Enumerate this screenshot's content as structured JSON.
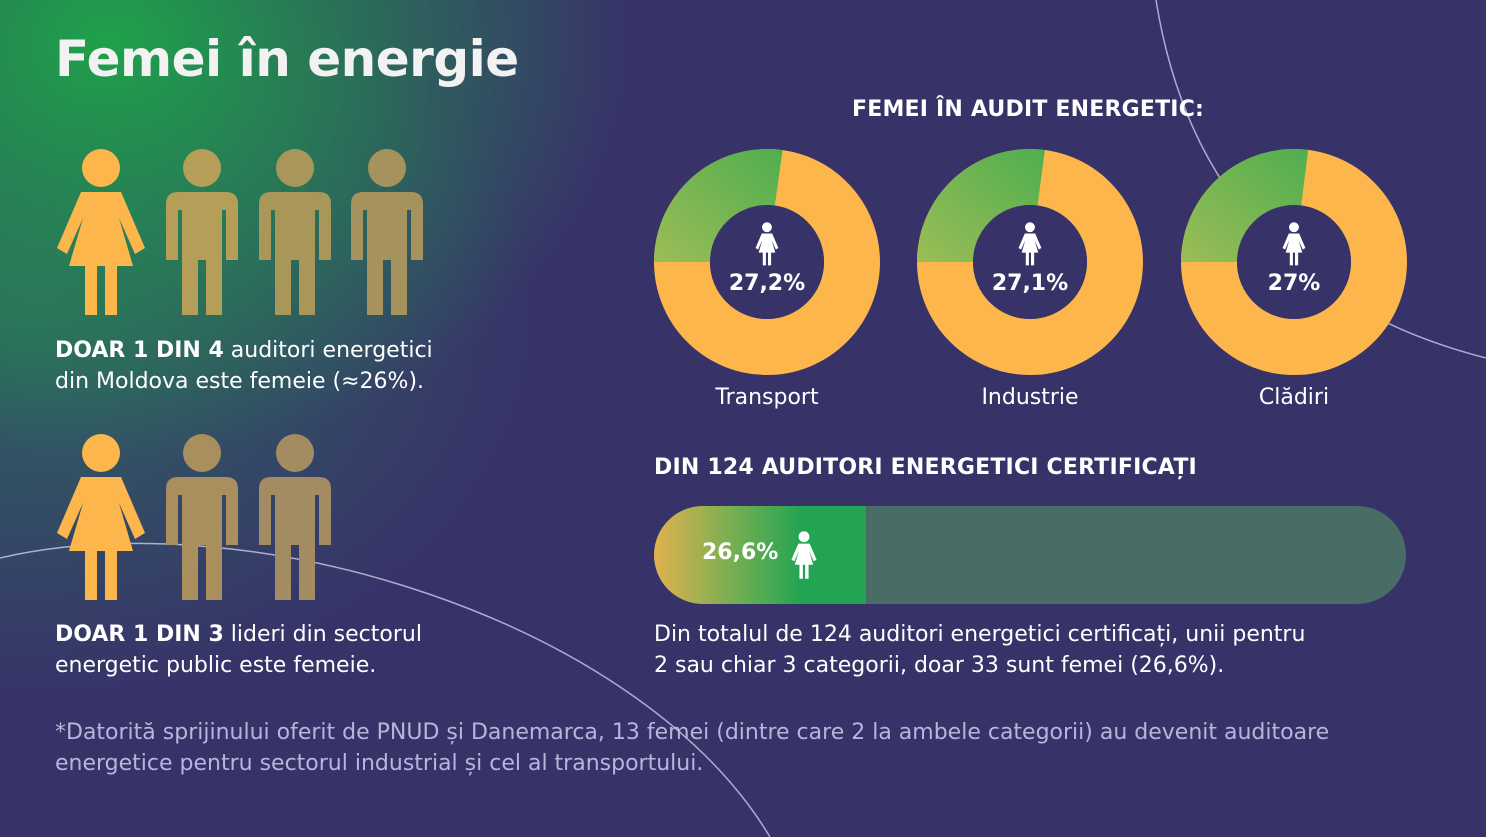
{
  "title": "Femei în energie",
  "colors": {
    "background": "#373369",
    "green_glow": "#1fa14a",
    "women": "#fcb64c",
    "donut_green": "#6cb552",
    "bar_track": "#4a6c66",
    "person_female": "#fcb64c",
    "person_male_1": "#b59e58",
    "person_male_2": "#a5925c",
    "person_male_3": "#a48c62"
  },
  "left": {
    "stat1": {
      "icons": [
        "female-person-icon",
        "male-person-icon",
        "male-person-icon",
        "male-person-icon"
      ],
      "bold": "DOAR 1 DIN 4",
      "line1_rest": " auditori energetici",
      "line2": "din Moldova este femeie (≈26%)."
    },
    "stat2": {
      "icons": [
        "female-person-icon",
        "male-person-icon",
        "male-person-icon"
      ],
      "bold": "DOAR 1 DIN 3",
      "line1_rest": " lideri din sectorul",
      "line2": "energetic public este femeie."
    }
  },
  "audit": {
    "title": "FEMEI ÎN AUDIT ENERGETIC:",
    "icon": "female-person-icon"
  },
  "certified": {
    "title": "DIN 124 AUDITORI ENERGETICI CERTIFICAȚI",
    "line1": "Din totalul de 124 auditori energetici certificați, unii pentru",
    "line2": "2 sau chiar 3 categorii, doar 33 sunt femei (26,6%).",
    "icon": "female-person-icon"
  },
  "footnote": {
    "line1": "*Datorită sprijinului oferit de PNUD și Danemarca, 13 femei (dintre care 2 la ambele categorii) au devenit auditoare",
    "line2": "energetice pentru sectorul industrial și cel al transportului."
  },
  "chart_data": [
    {
      "type": "pie",
      "title": "FEMEI ÎN AUDIT ENERGETIC:",
      "categories": [
        "Transport",
        "Industrie",
        "Clădiri"
      ],
      "values": [
        27.2,
        27.1,
        27
      ],
      "value_labels": [
        "27,2%",
        "27,1%",
        "27%"
      ]
    },
    {
      "type": "bar",
      "title": "DIN 124 AUDITORI ENERGETICI CERTIFICAȚI",
      "categories": [
        "Femei"
      ],
      "values": [
        26.6
      ],
      "value_labels": [
        "26,6%"
      ],
      "ylim": [
        0,
        100
      ]
    }
  ]
}
